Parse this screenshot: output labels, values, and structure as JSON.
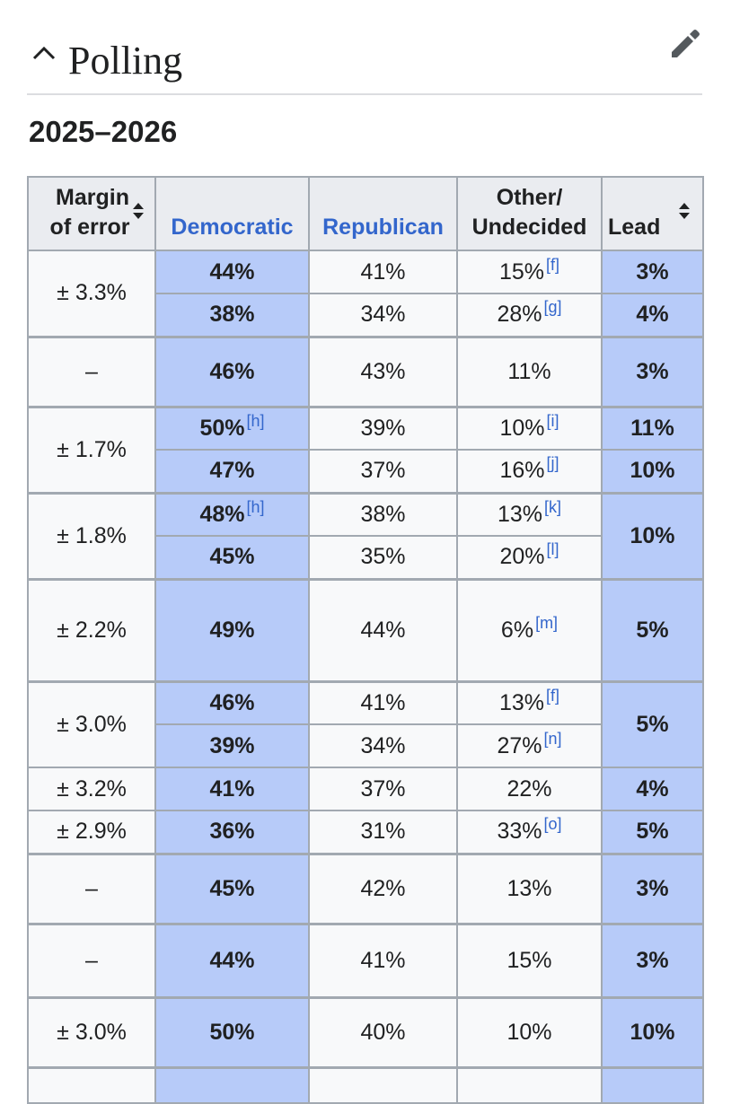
{
  "section": {
    "title": "Polling"
  },
  "subheading": "2025–2026",
  "table": {
    "headers": {
      "moe_line1": "Margin",
      "moe_line2": "of error",
      "democratic": "Democratic",
      "republican": "Republican",
      "other_line1": "Other/",
      "other_line2": "Undecided",
      "lead": "Lead"
    },
    "rows": [
      {
        "moe": "± 3.3%",
        "dem": "44%",
        "dem_ref": "",
        "rep": "41%",
        "other": "15%",
        "other_ref": "[f]",
        "lead": "3%"
      },
      {
        "dem": "38%",
        "dem_ref": "",
        "rep": "34%",
        "other": "28%",
        "other_ref": "[g]",
        "lead": "4%"
      },
      {
        "moe": "–",
        "dem": "46%",
        "dem_ref": "",
        "rep": "43%",
        "other": "11%",
        "other_ref": "",
        "lead": "3%"
      },
      {
        "moe": "± 1.7%",
        "dem": "50%",
        "dem_ref": "[h]",
        "rep": "39%",
        "other": "10%",
        "other_ref": "[i]",
        "lead": "11%"
      },
      {
        "dem": "47%",
        "dem_ref": "",
        "rep": "37%",
        "other": "16%",
        "other_ref": "[j]",
        "lead": "10%"
      },
      {
        "moe": "± 1.8%",
        "dem": "48%",
        "dem_ref": "[h]",
        "rep": "38%",
        "other": "13%",
        "other_ref": "[k]",
        "lead": "10%"
      },
      {
        "dem": "45%",
        "dem_ref": "",
        "rep": "35%",
        "other": "20%",
        "other_ref": "[l]"
      },
      {
        "moe": "± 2.2%",
        "dem": "49%",
        "dem_ref": "",
        "rep": "44%",
        "other": "6%",
        "other_ref": "[m]",
        "lead": "5%"
      },
      {
        "moe": "± 3.0%",
        "dem": "46%",
        "dem_ref": "",
        "rep": "41%",
        "other": "13%",
        "other_ref": "[f]",
        "lead": "5%"
      },
      {
        "dem": "39%",
        "dem_ref": "",
        "rep": "34%",
        "other": "27%",
        "other_ref": "[n]"
      },
      {
        "moe": "± 3.2%",
        "dem": "41%",
        "dem_ref": "",
        "rep": "37%",
        "other": "22%",
        "other_ref": "",
        "lead": "4%"
      },
      {
        "moe": "± 2.9%",
        "dem": "36%",
        "dem_ref": "",
        "rep": "31%",
        "other": "33%",
        "other_ref": "[o]",
        "lead": "5%"
      },
      {
        "moe": "–",
        "dem": "45%",
        "dem_ref": "",
        "rep": "42%",
        "other": "13%",
        "other_ref": "",
        "lead": "3%"
      },
      {
        "moe": "–",
        "dem": "44%",
        "dem_ref": "",
        "rep": "41%",
        "other": "15%",
        "other_ref": "",
        "lead": "3%"
      },
      {
        "moe": "± 3.0%",
        "dem": "50%",
        "dem_ref": "",
        "rep": "40%",
        "other": "10%",
        "other_ref": "",
        "lead": "10%"
      }
    ]
  },
  "icons": {
    "collapse": "chevron-up-icon",
    "edit": "pencil-icon",
    "sort": "sort-arrows-icon"
  },
  "colors": {
    "party_highlight": "#b7cbf9",
    "link_blue": "#3366cc",
    "header_bg": "#eaecf0",
    "cell_bg": "#f8f9fa",
    "border": "#a2a9b1"
  }
}
